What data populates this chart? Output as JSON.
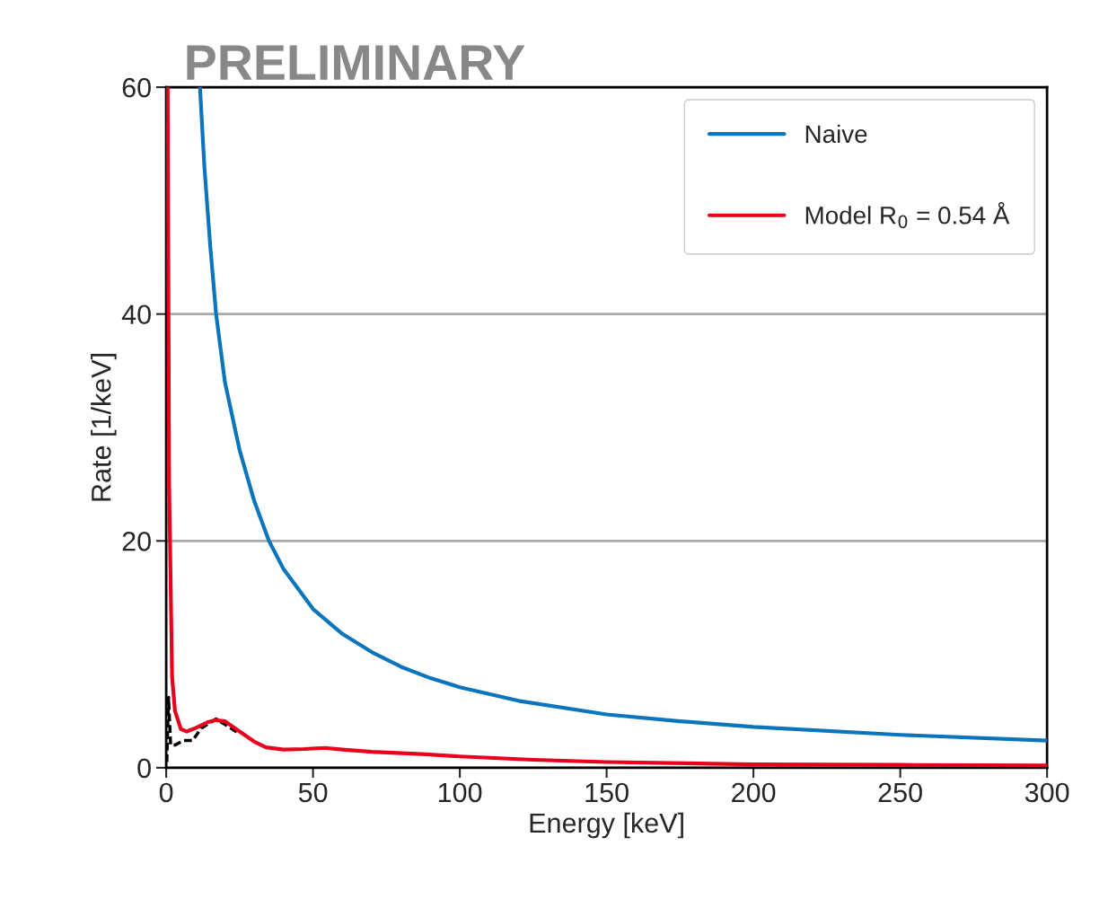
{
  "chart_data": {
    "type": "line",
    "title": "PRELIMINARY",
    "xlabel": "Energy [keV]",
    "ylabel": "Rate [1/keV]",
    "xlim": [
      0,
      300
    ],
    "ylim": [
      0,
      60
    ],
    "xticks": [
      0,
      50,
      100,
      150,
      200,
      250,
      300
    ],
    "yticks": [
      0,
      20,
      40,
      60
    ],
    "grid": "y",
    "legend": "top right",
    "marker": "none",
    "series": [
      {
        "name": "Naive",
        "color": "#0a75bd",
        "line_style": "solid",
        "x": [
          11.5,
          13,
          15,
          17,
          20,
          25,
          30,
          35,
          40,
          50,
          60,
          70,
          80,
          90,
          100,
          120,
          150,
          175,
          200,
          250,
          300
        ],
        "values": [
          60,
          53,
          46,
          40,
          34,
          28,
          23.5,
          20,
          17.5,
          14,
          11.8,
          10.2,
          8.9,
          7.9,
          7.1,
          5.9,
          4.7,
          4.1,
          3.6,
          2.9,
          2.4
        ]
      },
      {
        "color": "#000000",
        "line_style": "dashed",
        "x": [
          0.2,
          0.8,
          1.5,
          3,
          6,
          9,
          12,
          17,
          25
        ],
        "values": [
          0.5,
          6.2,
          2,
          2,
          2.4,
          2.4,
          3.5,
          4.3,
          3
        ]
      },
      {
        "name": "Model R$_{0}$ = 0.54 Å",
        "color": "#e8001c",
        "line_style": "solid",
        "x": [
          0.5,
          1,
          2,
          3,
          5,
          7,
          10,
          14,
          17,
          20,
          25,
          30,
          34,
          40,
          47,
          54,
          60,
          70,
          87,
          100,
          125,
          150,
          200,
          250,
          300
        ],
        "values": [
          60,
          25,
          8,
          5,
          3.4,
          3.2,
          3.5,
          4,
          4.2,
          4.1,
          3.2,
          2.3,
          1.8,
          1.6,
          1.65,
          1.75,
          1.6,
          1.4,
          1.2,
          1.0,
          0.7,
          0.5,
          0.3,
          0.25,
          0.2
        ]
      }
    ]
  }
}
